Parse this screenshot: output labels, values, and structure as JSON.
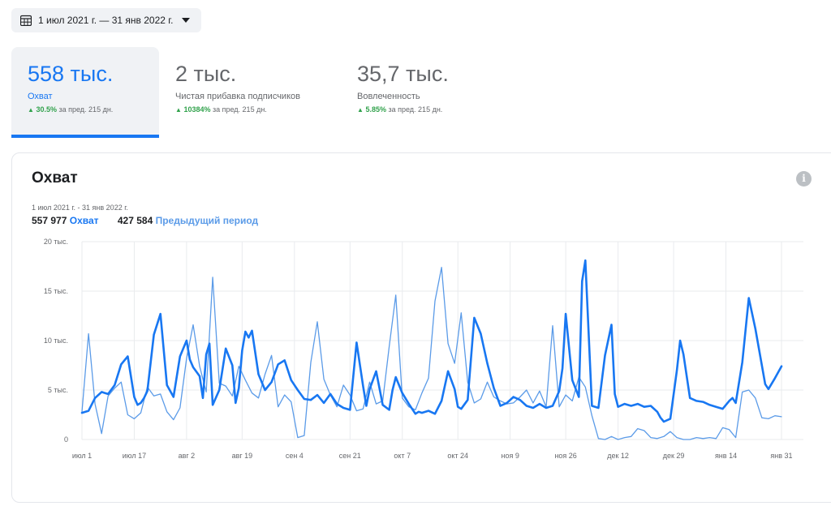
{
  "date_range_label": "1 июл 2021 г. — 31 янв 2022 г.",
  "metrics": [
    {
      "value": "558 тыс.",
      "label": "Охват",
      "change": "30.5%",
      "change_suffix": "за пред. 215 дн."
    },
    {
      "value": "2 тыс.",
      "label": "Чистая прибавка подписчиков",
      "change": "10384%",
      "change_suffix": "за пред. 215 дн."
    },
    {
      "value": "35,7 тыс.",
      "label": "Вовлеченность",
      "change": "5.85%",
      "change_suffix": "за пред. 215 дн."
    }
  ],
  "card": {
    "title": "Охват",
    "info_icon": "i",
    "range": "1 июл 2021 г. - 31 янв 2022 г.",
    "legend": [
      {
        "total": "557 977",
        "name": "Охват"
      },
      {
        "total": "427 584",
        "name": "Предыдущий период"
      }
    ]
  },
  "colors": {
    "current": "#1877f2",
    "previous": "#5b9be8",
    "grid": "#e9ebee"
  },
  "chart_data": {
    "type": "line",
    "ylim": [
      0,
      20000
    ],
    "y_ticks": [
      {
        "value": 0,
        "label": "0"
      },
      {
        "value": 5000,
        "label": "5 тыс."
      },
      {
        "value": 10000,
        "label": "10 тыс."
      },
      {
        "value": 15000,
        "label": "15 тыс."
      },
      {
        "value": 20000,
        "label": "20 тыс."
      }
    ],
    "x_ticks": [
      {
        "index": 0,
        "label": "июл 1"
      },
      {
        "index": 16,
        "label": "июл 17"
      },
      {
        "index": 32,
        "label": "авг 2"
      },
      {
        "index": 49,
        "label": "авг 19"
      },
      {
        "index": 65,
        "label": "сен 4"
      },
      {
        "index": 82,
        "label": "сен 21"
      },
      {
        "index": 98,
        "label": "окт 7"
      },
      {
        "index": 115,
        "label": "окт 24"
      },
      {
        "index": 131,
        "label": "ноя 9"
      },
      {
        "index": 148,
        "label": "ноя 26"
      },
      {
        "index": 164,
        "label": "дек 12"
      },
      {
        "index": 181,
        "label": "дек 29"
      },
      {
        "index": 197,
        "label": "янв 14"
      },
      {
        "index": 214,
        "label": "янв 31"
      }
    ],
    "grid": true,
    "series": [
      {
        "name": "Охват",
        "x": [
          0,
          2,
          4,
          6,
          8,
          10,
          12,
          14,
          16,
          17,
          18,
          19,
          20,
          22,
          24,
          26,
          28,
          30,
          32,
          33,
          34,
          36,
          37,
          38,
          39,
          40,
          42,
          44,
          46,
          47,
          48,
          49,
          50,
          51,
          52,
          54,
          56,
          58,
          60,
          62,
          64,
          66,
          68,
          70,
          72,
          74,
          76,
          78,
          80,
          82,
          84,
          86,
          87,
          88,
          90,
          92,
          94,
          95,
          96,
          98,
          100,
          102,
          103,
          104,
          106,
          108,
          110,
          112,
          114,
          115,
          116,
          118,
          120,
          122,
          124,
          126,
          128,
          130,
          132,
          134,
          136,
          138,
          140,
          142,
          144,
          146,
          147,
          148,
          150,
          152,
          153,
          154,
          156,
          158,
          160,
          162,
          163,
          164,
          166,
          168,
          170,
          172,
          174,
          176,
          177,
          178,
          180,
          182,
          183,
          184,
          186,
          188,
          190,
          192,
          194,
          196,
          198,
          199,
          200,
          202,
          204,
          206,
          208,
          209,
          210,
          212,
          214
        ],
        "values": [
          2700,
          2900,
          4200,
          4800,
          4600,
          5500,
          7600,
          8400,
          4300,
          3500,
          3700,
          4200,
          4900,
          10600,
          12700,
          5500,
          4300,
          8400,
          10000,
          8100,
          7300,
          6400,
          4200,
          8600,
          9700,
          3500,
          5000,
          9200,
          7500,
          3700,
          5200,
          9000,
          10900,
          10300,
          11000,
          6600,
          5000,
          5800,
          7600,
          8000,
          6000,
          5000,
          4100,
          4000,
          4500,
          3700,
          4600,
          3600,
          3200,
          3000,
          9800,
          5400,
          3400,
          5100,
          6900,
          3500,
          3000,
          5000,
          6300,
          4700,
          3600,
          2600,
          2800,
          2700,
          2900,
          2600,
          3900,
          6900,
          5100,
          3300,
          3100,
          4000,
          12300,
          10700,
          7700,
          5200,
          3400,
          3700,
          4300,
          4000,
          3400,
          3200,
          3600,
          3200,
          3400,
          4900,
          7200,
          12700,
          6000,
          4300,
          16000,
          18100,
          3400,
          3200,
          8500,
          11600,
          4600,
          3300,
          3600,
          3400,
          3600,
          3300,
          3400,
          2800,
          2200,
          1800,
          2100,
          7000,
          10000,
          8600,
          4200,
          3900,
          3800,
          3500,
          3300,
          3100,
          3900,
          4200,
          3700,
          7800,
          14300,
          11200,
          7500,
          5600,
          5100,
          6200,
          7400
        ],
        "color": "#1877f2"
      },
      {
        "name": "Предыдущий период",
        "x": [
          0,
          2,
          4,
          6,
          8,
          10,
          12,
          14,
          16,
          18,
          20,
          22,
          24,
          26,
          28,
          30,
          32,
          34,
          36,
          38,
          40,
          42,
          44,
          46,
          48,
          50,
          52,
          54,
          56,
          58,
          60,
          62,
          64,
          66,
          68,
          70,
          72,
          74,
          76,
          78,
          80,
          82,
          84,
          86,
          88,
          90,
          92,
          94,
          96,
          98,
          100,
          102,
          104,
          106,
          108,
          110,
          112,
          114,
          116,
          118,
          120,
          122,
          124,
          126,
          128,
          130,
          132,
          134,
          136,
          138,
          140,
          142,
          144,
          146,
          148,
          150,
          152,
          154,
          156,
          158,
          160,
          162,
          164,
          166,
          168,
          170,
          172,
          174,
          176,
          178,
          180,
          182,
          184,
          186,
          188,
          190,
          192,
          194,
          196,
          198,
          200,
          202,
          204,
          206,
          208,
          210,
          212,
          214
        ],
        "values": [
          2800,
          10700,
          3600,
          600,
          4400,
          5200,
          5800,
          2500,
          2100,
          2700,
          5300,
          4400,
          4600,
          2800,
          2000,
          3200,
          8200,
          11600,
          7400,
          4800,
          16400,
          5700,
          5400,
          4400,
          7400,
          6000,
          4700,
          4200,
          6600,
          8500,
          3300,
          4500,
          3800,
          200,
          400,
          7800,
          11900,
          6100,
          4500,
          3300,
          5500,
          4500,
          2900,
          3100,
          5800,
          3600,
          3900,
          9400,
          14600,
          4200,
          3300,
          3000,
          4700,
          6200,
          14000,
          17400,
          9700,
          7700,
          12800,
          5800,
          3700,
          4100,
          5800,
          4300,
          3900,
          3600,
          3700,
          4300,
          5000,
          3700,
          4900,
          3300,
          11500,
          3300,
          4500,
          3900,
          6300,
          5300,
          2400,
          100,
          0,
          300,
          0,
          200,
          300,
          1100,
          900,
          200,
          100,
          300,
          800,
          200,
          0,
          0,
          200,
          100,
          200,
          100,
          1200,
          1000,
          200,
          4800,
          5000,
          4200,
          2200,
          2100,
          2400,
          2300
        ],
        "color": "#5b9be8"
      }
    ]
  }
}
